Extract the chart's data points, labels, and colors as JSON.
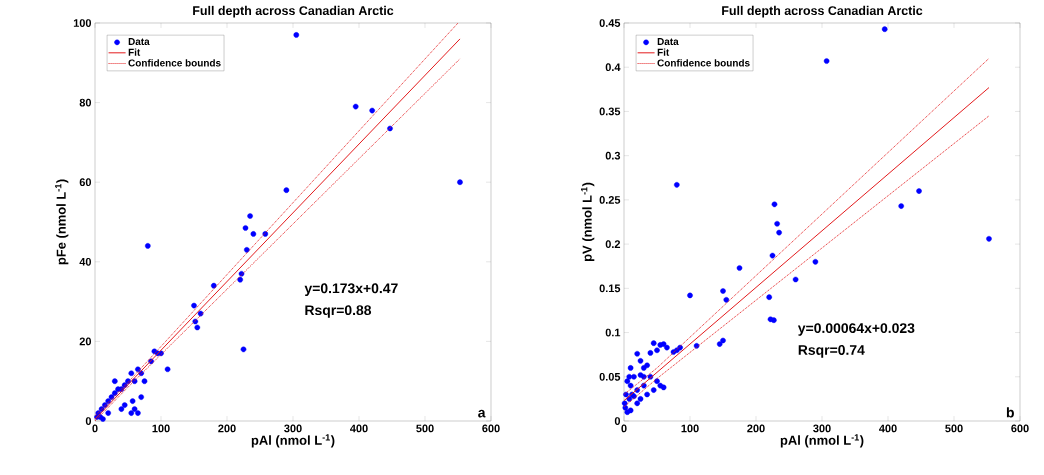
{
  "chart_data": [
    {
      "type": "scatter",
      "title": "Full depth across Canadian Arctic",
      "xlabel": "pAl (nmol L$^{-1}$)",
      "ylabel": "pFe (nmol L$^{-1}$)",
      "xlim": [
        0,
        600
      ],
      "ylim": [
        0,
        100
      ],
      "xticks": [
        0,
        100,
        200,
        300,
        400,
        500,
        600
      ],
      "yticks": [
        0,
        20,
        40,
        60,
        80,
        100
      ],
      "grid": false,
      "legend": "top left",
      "series": [
        {
          "name": "Data",
          "type": "scatter",
          "marker": "circle",
          "color": "#0000ff",
          "x": [
            305,
            395,
            420,
            447,
            553,
            290,
            258,
            235,
            240,
            228,
            230,
            222,
            220,
            225,
            180,
            160,
            152,
            155,
            150,
            80,
            100,
            110,
            90,
            85,
            95,
            70,
            65,
            60,
            55,
            50,
            45,
            40,
            35,
            30,
            25,
            20,
            15,
            10,
            5,
            3,
            8,
            60,
            55,
            57,
            70,
            75,
            65,
            40,
            30,
            20,
            12,
            45
          ],
          "values": [
            97,
            79,
            78,
            73.5,
            60,
            58,
            47,
            51.5,
            47,
            48.5,
            43,
            37,
            35.5,
            18,
            34,
            27,
            25,
            23.5,
            29,
            44,
            17,
            13,
            17.5,
            15,
            17,
            12,
            13,
            10,
            12,
            10,
            9,
            8,
            8,
            7,
            6,
            5,
            4,
            3,
            2,
            1,
            1,
            3,
            2,
            5,
            6,
            10,
            2,
            3,
            10,
            2,
            0.5,
            4
          ]
        },
        {
          "name": "Fit",
          "type": "line",
          "marker": "none",
          "line_style": "solid",
          "color": "#e31a1c",
          "x": [
            0,
            553
          ],
          "values": [
            0.5,
            96
          ]
        },
        {
          "name": "Confidence bounds",
          "type": "line",
          "marker": "none",
          "line_style": "dotted",
          "color": "#e31a1c",
          "x": [
            0,
            50,
            550
          ],
          "values": [
            1.3,
            9.7,
            100
          ]
        },
        {
          "type": "line",
          "marker": "none",
          "line_style": "dotted",
          "color": "#e31a1c",
          "x": [
            0,
            50,
            553
          ],
          "values": [
            0,
            8.5,
            91
          ]
        }
      ],
      "annotations": [
        "y=0.173x+0.47",
        "Rsqr=0.88",
        "a"
      ]
    },
    {
      "type": "scatter",
      "title": "Full depth across Canadian Arctic",
      "xlabel": "pAl (nmol L$^{-1}$)",
      "ylabel": "pV (nmol L$^{-1}$)",
      "xlim": [
        0,
        600
      ],
      "ylim": [
        0,
        0.45
      ],
      "xticks": [
        0,
        100,
        200,
        300,
        400,
        500,
        600
      ],
      "yticks": [
        0,
        0.05,
        0.1,
        0.15,
        0.2,
        0.25,
        0.3,
        0.35,
        0.4,
        0.45
      ],
      "grid": false,
      "legend": "top left",
      "series": [
        {
          "name": "Data",
          "marker": "circle",
          "color": "#0000ff",
          "x": [
            395,
            307,
            80,
            228,
            232,
            235,
            260,
            290,
            420,
            447,
            553,
            225,
            220,
            222,
            227,
            175,
            150,
            155,
            100,
            150,
            145,
            110,
            85,
            80,
            75,
            65,
            60,
            55,
            45,
            50,
            40,
            20,
            25,
            10,
            30,
            35,
            25,
            15,
            40,
            50,
            55,
            60,
            45,
            30,
            20,
            10,
            5,
            3,
            8,
            15,
            2,
            5,
            10,
            1,
            12,
            20,
            25,
            35,
            8,
            30
          ],
          "values": [
            0.443,
            0.407,
            0.267,
            0.245,
            0.223,
            0.213,
            0.16,
            0.18,
            0.243,
            0.26,
            0.206,
            0.187,
            0.14,
            0.115,
            0.114,
            0.173,
            0.147,
            0.137,
            0.142,
            0.091,
            0.087,
            0.085,
            0.083,
            0.08,
            0.078,
            0.083,
            0.087,
            0.086,
            0.088,
            0.08,
            0.077,
            0.076,
            0.068,
            0.06,
            0.06,
            0.063,
            0.052,
            0.05,
            0.05,
            0.045,
            0.04,
            0.038,
            0.035,
            0.04,
            0.035,
            0.04,
            0.045,
            0.03,
            0.025,
            0.028,
            0.015,
            0.01,
            0.012,
            0.02,
            0.03,
            0.02,
            0.025,
            0.03,
            0.05,
            0.05
          ]
        },
        {
          "name": "Fit",
          "type": "line",
          "marker": "none",
          "line_style": "solid",
          "color": "#e31a1c",
          "x": [
            0,
            553
          ],
          "values": [
            0.023,
            0.377
          ]
        },
        {
          "name": "Confidence bounds",
          "type": "line",
          "marker": "none",
          "line_style": "dotted",
          "color": "#e31a1c",
          "x": [
            0,
            50,
            553
          ],
          "values": [
            0.03,
            0.06,
            0.41
          ]
        },
        {
          "type": "line",
          "marker": "none",
          "line_style": "dotted",
          "color": "#e31a1c",
          "x": [
            0,
            50,
            553
          ],
          "values": [
            0.016,
            0.048,
            0.345
          ]
        }
      ],
      "annotations": [
        "y=0.00064x+0.023",
        "Rsqr=0.74",
        "b"
      ]
    }
  ]
}
